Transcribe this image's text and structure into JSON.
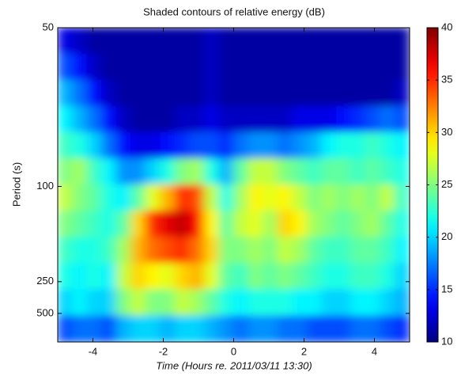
{
  "chart_data": {
    "type": "heatmap",
    "title": "Shaded contours of relative energy (dB)",
    "xlabel": "Time (Hours re. 2011/03/11 13:30)",
    "ylabel": "Period (s)",
    "xlim": [
      -5,
      5
    ],
    "xticks": [
      -4,
      -2,
      0,
      2,
      4
    ],
    "ylim": [
      5000,
      50
    ],
    "yticks": [
      50,
      100,
      250,
      500
    ],
    "yscale": "reciprocal",
    "colormap": "jet",
    "clim": [
      10,
      40
    ],
    "cticks": [
      10,
      15,
      20,
      25,
      30,
      35,
      40
    ],
    "z": [
      [
        13,
        12,
        11,
        11,
        11,
        11,
        11,
        11,
        11,
        11,
        12,
        11,
        11,
        11,
        11,
        11,
        11,
        11,
        11,
        11,
        11,
        11,
        11,
        11
      ],
      [
        16,
        14,
        12,
        11,
        11,
        11,
        11,
        11,
        11,
        11,
        12,
        11,
        11,
        11,
        11,
        11,
        11,
        11,
        11,
        11,
        11,
        11,
        11,
        11
      ],
      [
        19,
        17,
        14,
        12,
        11,
        11,
        11,
        11,
        11,
        11,
        12,
        11,
        11,
        11,
        11,
        11,
        11,
        11,
        11,
        11,
        11,
        11,
        11,
        12
      ],
      [
        21,
        19,
        17,
        14,
        12,
        11,
        11,
        11,
        12,
        12,
        13,
        12,
        12,
        12,
        12,
        12,
        13,
        13,
        13,
        14,
        15,
        16,
        17,
        16
      ],
      [
        23,
        22,
        20,
        17,
        14,
        13,
        13,
        14,
        15,
        16,
        16,
        15,
        17,
        18,
        18,
        17,
        18,
        19,
        21,
        22,
        22,
        23,
        22,
        21
      ],
      [
        25,
        26,
        23,
        21,
        18,
        18,
        20,
        22,
        25,
        26,
        22,
        19,
        24,
        27,
        27,
        25,
        24,
        23,
        24,
        24,
        23,
        24,
        23,
        22
      ],
      [
        27,
        25,
        24,
        22,
        21,
        24,
        28,
        31,
        35,
        34,
        27,
        22,
        26,
        29,
        28,
        29,
        27,
        25,
        26,
        25,
        26,
        25,
        27,
        23
      ],
      [
        25,
        24,
        23,
        22,
        24,
        30,
        35,
        37,
        38,
        36,
        29,
        24,
        27,
        28,
        26,
        30,
        29,
        26,
        25,
        24,
        25,
        26,
        24,
        22
      ],
      [
        23,
        22,
        22,
        23,
        26,
        31,
        33,
        34,
        35,
        33,
        30,
        25,
        25,
        26,
        25,
        27,
        26,
        24,
        23,
        23,
        24,
        24,
        23,
        21
      ],
      [
        22,
        21,
        22,
        21,
        27,
        30,
        29,
        28,
        30,
        31,
        28,
        24,
        23,
        25,
        24,
        25,
        24,
        23,
        22,
        22,
        23,
        23,
        22,
        20
      ],
      [
        20,
        21,
        20,
        20,
        25,
        27,
        25,
        25,
        27,
        26,
        24,
        22,
        21,
        22,
        22,
        22,
        21,
        21,
        20,
        20,
        21,
        21,
        20,
        19
      ],
      [
        16,
        17,
        17,
        16,
        19,
        20,
        20,
        19,
        20,
        20,
        19,
        18,
        17,
        18,
        18,
        17,
        17,
        16,
        16,
        16,
        17,
        17,
        16,
        15
      ]
    ]
  }
}
